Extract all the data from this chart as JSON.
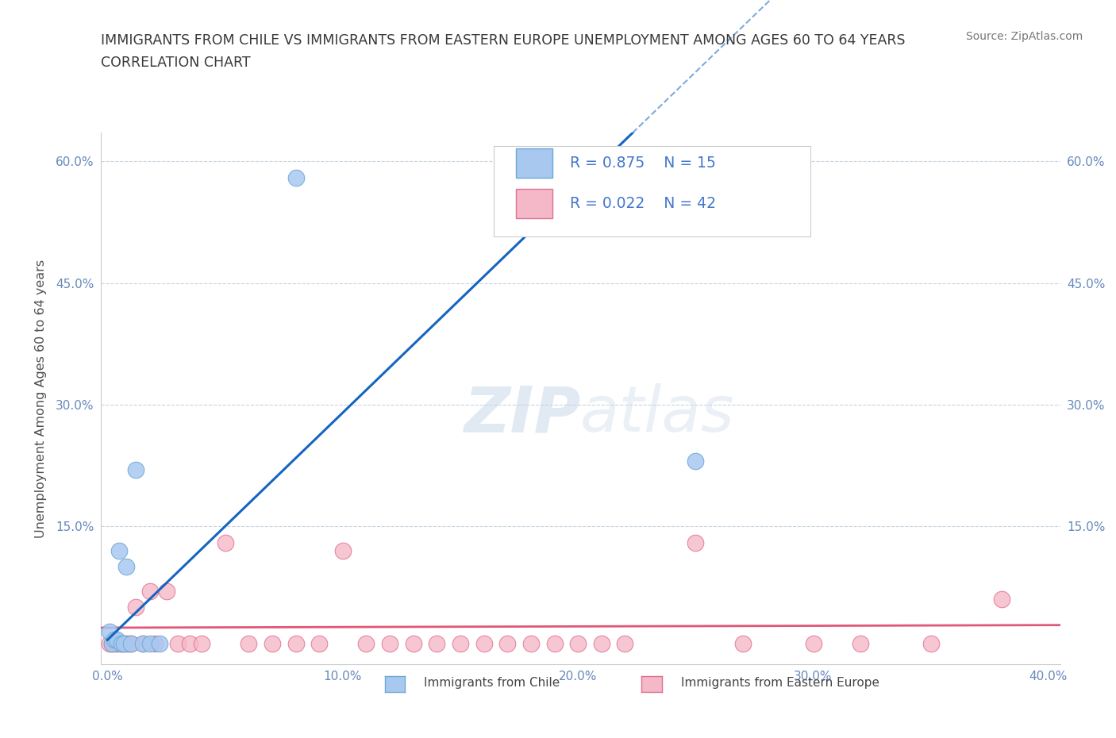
{
  "title_line1": "IMMIGRANTS FROM CHILE VS IMMIGRANTS FROM EASTERN EUROPE UNEMPLOYMENT AMONG AGES 60 TO 64 YEARS",
  "title_line2": "CORRELATION CHART",
  "source_text": "Source: ZipAtlas.com",
  "ylabel": "Unemployment Among Ages 60 to 64 years",
  "xlim": [
    -0.003,
    0.405
  ],
  "ylim": [
    -0.02,
    0.635
  ],
  "xticks": [
    0.0,
    0.05,
    0.1,
    0.15,
    0.2,
    0.25,
    0.3,
    0.35,
    0.4
  ],
  "xticklabels": [
    "0.0%",
    "",
    "10.0%",
    "",
    "20.0%",
    "",
    "30.0%",
    "",
    "40.0%"
  ],
  "yticks": [
    0.0,
    0.15,
    0.3,
    0.45,
    0.6
  ],
  "yticklabels": [
    "",
    "15.0%",
    "30.0%",
    "45.0%",
    "60.0%"
  ],
  "chile_color": "#a8c8f0",
  "chile_edge_color": "#6aaad4",
  "chile_line_color": "#1565c0",
  "eastern_color": "#f5b8c8",
  "eastern_edge_color": "#e07090",
  "eastern_line_color": "#e05878",
  "grid_color": "#c8d4e0",
  "background_color": "#ffffff",
  "watermark_zip": "ZIP",
  "watermark_atlas": "atlas",
  "legend_R_chile": "R = 0.875",
  "legend_N_chile": "N = 15",
  "legend_R_eastern": "R = 0.022",
  "legend_N_eastern": "N = 42",
  "chile_points_x": [
    0.001,
    0.002,
    0.003,
    0.004,
    0.005,
    0.006,
    0.007,
    0.008,
    0.01,
    0.012,
    0.015,
    0.018,
    0.022,
    0.08,
    0.25
  ],
  "chile_points_y": [
    0.02,
    0.005,
    0.01,
    0.01,
    0.12,
    0.005,
    0.005,
    0.1,
    0.005,
    0.22,
    0.005,
    0.005,
    0.005,
    0.58,
    0.23
  ],
  "eastern_points_x": [
    0.001,
    0.002,
    0.003,
    0.004,
    0.005,
    0.006,
    0.007,
    0.008,
    0.009,
    0.01,
    0.012,
    0.015,
    0.018,
    0.02,
    0.025,
    0.03,
    0.035,
    0.04,
    0.05,
    0.06,
    0.07,
    0.08,
    0.09,
    0.1,
    0.11,
    0.12,
    0.13,
    0.14,
    0.15,
    0.16,
    0.17,
    0.18,
    0.19,
    0.2,
    0.21,
    0.22,
    0.25,
    0.27,
    0.3,
    0.32,
    0.35,
    0.38
  ],
  "eastern_points_y": [
    0.005,
    0.005,
    0.005,
    0.005,
    0.005,
    0.005,
    0.005,
    0.005,
    0.005,
    0.005,
    0.05,
    0.005,
    0.07,
    0.005,
    0.07,
    0.005,
    0.005,
    0.005,
    0.13,
    0.005,
    0.005,
    0.005,
    0.005,
    0.12,
    0.005,
    0.005,
    0.005,
    0.005,
    0.005,
    0.005,
    0.005,
    0.005,
    0.005,
    0.005,
    0.005,
    0.005,
    0.13,
    0.005,
    0.005,
    0.005,
    0.005,
    0.06
  ],
  "title_color": "#3a3a3a",
  "axis_label_color": "#505050",
  "tick_label_color": "#6688bb",
  "legend_text_color": "#4477cc",
  "chile_reg_slope": 2.8,
  "chile_reg_intercept": 0.01,
  "eastern_reg_slope": 0.008,
  "eastern_reg_intercept": 0.025
}
